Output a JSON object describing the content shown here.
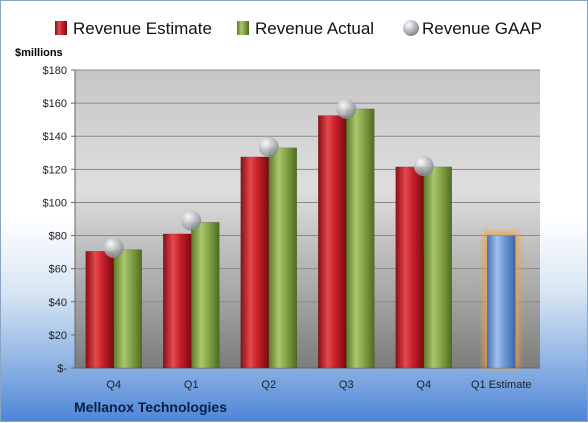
{
  "chart_data": {
    "type": "bar",
    "categories": [
      "Q4",
      "Q1",
      "Q2",
      "Q3",
      "Q4",
      "Q1 Estimate"
    ],
    "series": [
      {
        "name": "Revenue Estimate",
        "values": [
          70.5,
          81,
          127.5,
          152.5,
          121.5,
          null
        ],
        "color": "#c8202a"
      },
      {
        "name": "Revenue Actual",
        "values": [
          71.5,
          88,
          133,
          156.5,
          121.5,
          null
        ],
        "color": "#86a84a"
      },
      {
        "name": "Revenue GAAP",
        "values": [
          72.5,
          89,
          133.5,
          156.5,
          122,
          null
        ],
        "color": "#b9bcc4"
      }
    ],
    "estimate": {
      "category": "Q1 Estimate",
      "value": 80,
      "color": "#6f9ad6",
      "highlight": "#f0a040"
    },
    "ylabel": "$millions",
    "ylim": [
      0,
      180
    ],
    "yticks": [
      "$-",
      "$20",
      "$40",
      "$60",
      "$80",
      "$100",
      "$120",
      "$140",
      "$160",
      "$180"
    ],
    "legend_position": "top",
    "grid": true
  },
  "company": "Mellanox Technologies"
}
